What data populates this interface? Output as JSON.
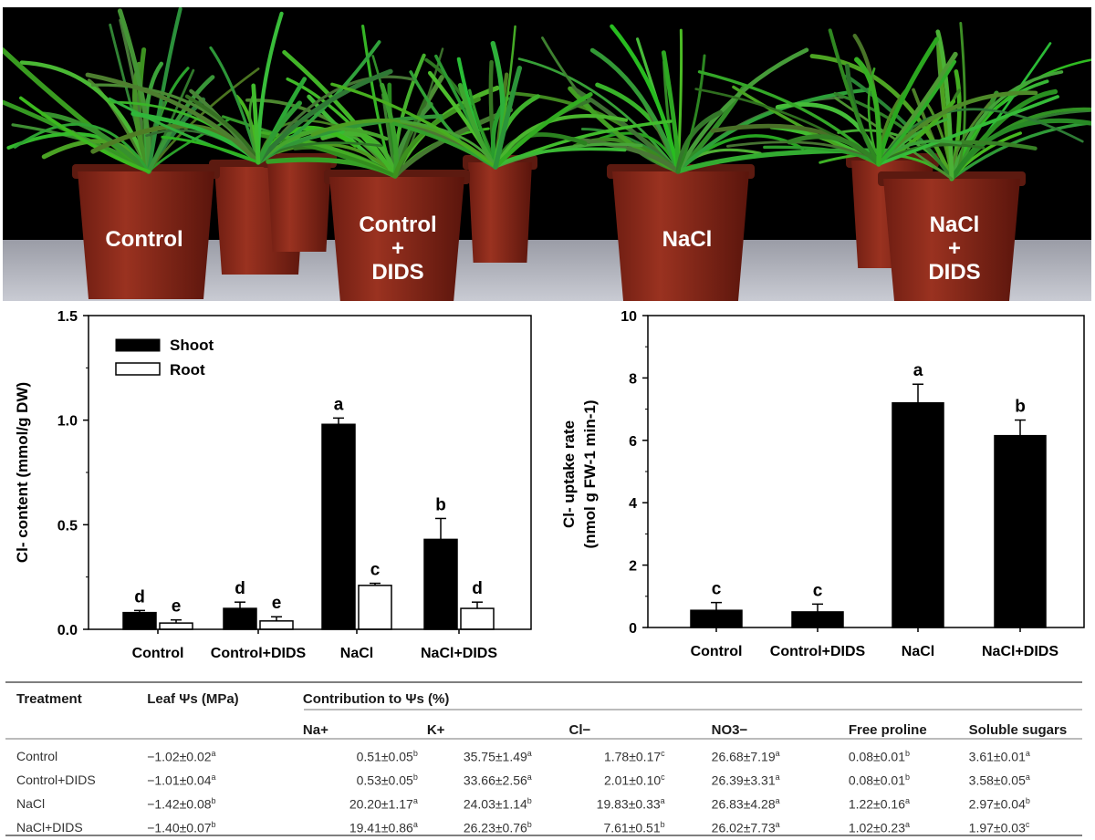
{
  "photo": {
    "labels": [
      "Control",
      "Control\n+\nDIDS",
      "NaCl",
      "NaCl\n+\nDIDS"
    ]
  },
  "chart_data": [
    {
      "type": "bar",
      "ylabel": "Cl- content (mmol/g DW)",
      "ylim": [
        0,
        1.5
      ],
      "yticks": [
        "0.0",
        "0.5",
        "1.0",
        "1.5"
      ],
      "categories": [
        "Control",
        "Control+DIDS",
        "NaCl",
        "NaCl+DIDS"
      ],
      "legend_position": "top-left",
      "series": [
        {
          "name": "Shoot",
          "color": "#000000",
          "values": [
            0.08,
            0.1,
            0.98,
            0.43
          ],
          "errors": [
            0.01,
            0.03,
            0.03,
            0.1
          ],
          "letters": [
            "d",
            "d",
            "a",
            "b"
          ]
        },
        {
          "name": "Root",
          "color": "#ffffff",
          "values": [
            0.03,
            0.04,
            0.21,
            0.1
          ],
          "errors": [
            0.015,
            0.02,
            0.01,
            0.03
          ],
          "letters": [
            "e",
            "e",
            "c",
            "d"
          ]
        }
      ]
    },
    {
      "type": "bar",
      "ylabel_line1": "Cl- uptake rate",
      "ylabel_line2": "(nmol g FW-1 min-1)",
      "ylim": [
        0,
        10
      ],
      "yticks": [
        "0",
        "2",
        "4",
        "6",
        "8",
        "10"
      ],
      "categories": [
        "Control",
        "Control+DIDS",
        "NaCl",
        "NaCl+DIDS"
      ],
      "series": [
        {
          "color": "#000000",
          "values": [
            0.55,
            0.5,
            7.2,
            6.15
          ],
          "errors": [
            0.25,
            0.25,
            0.6,
            0.5
          ],
          "letters": [
            "c",
            "c",
            "a",
            "b"
          ]
        }
      ]
    }
  ],
  "table": {
    "header1": {
      "treatment": "Treatment",
      "leaf": "Leaf Ψs (MPa)",
      "contribution": "Contribution to Ψs (%)"
    },
    "header2": [
      "Na+",
      "K+",
      "Cl−",
      "NO3−",
      "Free proline",
      "Soluble sugars"
    ],
    "rows": [
      {
        "cells": [
          "Control",
          "−1.02±0.02",
          "0.51±0.05",
          "35.75±1.49",
          "1.78±0.17",
          "26.68±7.19",
          "0.08±0.01",
          "3.61±0.01"
        ],
        "sups": [
          "",
          "a",
          "b",
          "a",
          "c",
          "a",
          "b",
          "a"
        ]
      },
      {
        "cells": [
          "Control+DIDS",
          "−1.01±0.04",
          "0.53±0.05",
          "33.66±2.56",
          "2.01±0.10",
          "26.39±3.31",
          "0.08±0.01",
          "3.58±0.05"
        ],
        "sups": [
          "",
          "a",
          "b",
          "a",
          "c",
          "a",
          "b",
          "a"
        ]
      },
      {
        "cells": [
          "NaCl",
          "−1.42±0.08",
          "20.20±1.17",
          "24.03±1.14",
          "19.83±0.33",
          "26.83±4.28",
          "1.22±0.16",
          "2.97±0.04"
        ],
        "sups": [
          "",
          "b",
          "a",
          "b",
          "a",
          "a",
          "a",
          "b"
        ]
      },
      {
        "cells": [
          "NaCl+DIDS",
          "−1.40±0.07",
          "19.41±0.86",
          "26.23±0.76",
          "7.61±0.51",
          "26.02±7.73",
          "1.02±0.23",
          "1.97±0.03"
        ],
        "sups": [
          "",
          "b",
          "a",
          "b",
          "b",
          "a",
          "a",
          "c"
        ]
      }
    ]
  }
}
